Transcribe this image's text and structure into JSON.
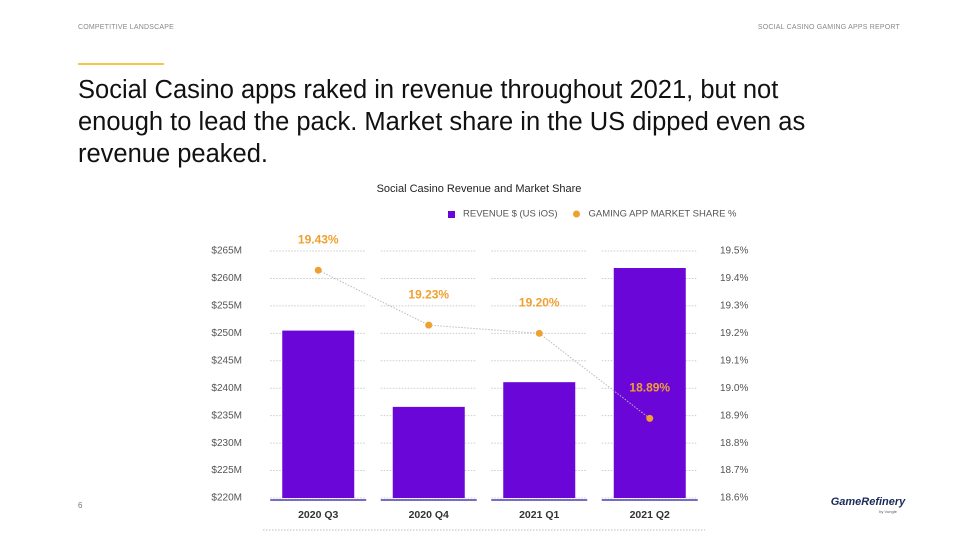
{
  "header": {
    "left": "COMPETITIVE LANDSCAPE",
    "right": "SOCIAL CASINO GAMING APPS REPORT"
  },
  "headline": "Social Casino apps raked in revenue throughout 2021, but not enough to lead the pack. Market share in the US dipped even as revenue peaked.",
  "chart_data": {
    "type": "bar",
    "title": "Social Casino Revenue and Market Share",
    "categories": [
      "2020 Q3",
      "2020 Q4",
      "2021 Q1",
      "2021 Q2"
    ],
    "series": [
      {
        "name": "REVENUE $ (US iOS)",
        "color": "#6a06d8",
        "type": "bar",
        "values": [
          250.5,
          236.6,
          241.1,
          261.9
        ]
      },
      {
        "name": "GAMING APP MARKET SHARE %",
        "color": "#f0a030",
        "type": "line",
        "axis": "y2",
        "values": [
          19.43,
          19.23,
          19.2,
          18.89
        ],
        "value_labels": [
          "19.43%",
          "19.23%",
          "19.20%",
          "18.89%"
        ]
      }
    ],
    "ylim": [
      220,
      265
    ],
    "yticks": [
      {
        "value": 220,
        "label": "$220M"
      },
      {
        "value": 225,
        "label": "$225M"
      },
      {
        "value": 230,
        "label": "$230M"
      },
      {
        "value": 235,
        "label": "$235M"
      },
      {
        "value": 240,
        "label": "$240M"
      },
      {
        "value": 245,
        "label": "$245M"
      },
      {
        "value": 250,
        "label": "$250M"
      },
      {
        "value": 255,
        "label": "$255M"
      },
      {
        "value": 260,
        "label": "$260M"
      },
      {
        "value": 265,
        "label": "$265M"
      }
    ],
    "y2lim": [
      18.6,
      19.5
    ],
    "y2ticks": [
      {
        "value": 18.6,
        "label": "18.6%"
      },
      {
        "value": 18.7,
        "label": "18.7%"
      },
      {
        "value": 18.8,
        "label": "18.8%"
      },
      {
        "value": 18.9,
        "label": "18.9%"
      },
      {
        "value": 19.0,
        "label": "19.0%"
      },
      {
        "value": 19.1,
        "label": "19.1%"
      },
      {
        "value": 19.2,
        "label": "19.2%"
      },
      {
        "value": 19.3,
        "label": "19.3%"
      },
      {
        "value": 19.4,
        "label": "19.4%"
      },
      {
        "value": 19.5,
        "label": "19.5%"
      }
    ],
    "grid": true
  },
  "footer": {
    "page": "6",
    "logo": "GameRefinery",
    "logo_sub": "by Vungle"
  }
}
